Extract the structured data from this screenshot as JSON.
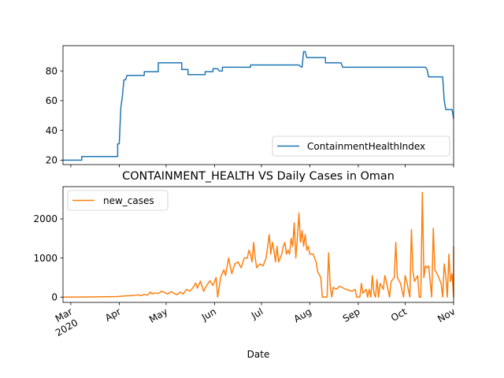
{
  "chart_data": [
    {
      "type": "line",
      "title": "",
      "xlabel": "",
      "ylabel": "",
      "x_range": [
        "2020-02-25",
        "2020-11-01"
      ],
      "ylim": [
        17,
        97
      ],
      "yticks": [
        20,
        40,
        60,
        80
      ],
      "grid": false,
      "legend_position": "lower right",
      "series": [
        {
          "name": "ContainmentHealthIndex",
          "color": "#1f77b4",
          "points": [
            [
              "2020-02-25",
              20
            ],
            [
              "2020-03-08",
              20
            ],
            [
              "2020-03-08",
              22.4
            ],
            [
              "2020-03-31",
              22.4
            ],
            [
              "2020-03-31",
              31
            ],
            [
              "2020-04-01",
              31
            ],
            [
              "2020-04-02",
              55
            ],
            [
              "2020-04-03",
              63
            ],
            [
              "2020-04-04",
              74
            ],
            [
              "2020-04-05",
              74
            ],
            [
              "2020-04-06",
              77
            ],
            [
              "2020-04-17",
              77
            ],
            [
              "2020-04-17",
              79.5
            ],
            [
              "2020-04-26",
              79.5
            ],
            [
              "2020-04-26",
              85.5
            ],
            [
              "2020-05-11",
              85.5
            ],
            [
              "2020-05-11",
              81
            ],
            [
              "2020-05-15",
              81
            ],
            [
              "2020-05-15",
              77.5
            ],
            [
              "2020-05-26",
              77.5
            ],
            [
              "2020-05-26",
              79.5
            ],
            [
              "2020-05-31",
              79.5
            ],
            [
              "2020-05-31",
              81.5
            ],
            [
              "2020-06-03",
              81.5
            ],
            [
              "2020-06-04",
              80
            ],
            [
              "2020-06-06",
              80
            ],
            [
              "2020-06-06",
              82.5
            ],
            [
              "2020-06-24",
              82.5
            ],
            [
              "2020-06-24",
              84
            ],
            [
              "2020-07-25",
              84
            ],
            [
              "2020-07-26",
              83
            ],
            [
              "2020-07-27",
              82.5
            ],
            [
              "2020-07-28",
              93
            ],
            [
              "2020-07-29",
              93
            ],
            [
              "2020-07-30",
              89
            ],
            [
              "2020-08-11",
              89
            ],
            [
              "2020-08-11",
              85.5
            ],
            [
              "2020-08-21",
              85.5
            ],
            [
              "2020-08-22",
              82.5
            ],
            [
              "2020-10-14",
              82.5
            ],
            [
              "2020-10-15",
              81
            ],
            [
              "2020-10-16",
              76
            ],
            [
              "2020-10-25",
              76
            ],
            [
              "2020-10-26",
              60
            ],
            [
              "2020-10-27",
              54
            ],
            [
              "2020-10-31",
              54
            ],
            [
              "2020-11-01",
              48
            ]
          ]
        }
      ]
    },
    {
      "type": "line",
      "title": "CONTAINMENT_HEALTH VS Daily Cases in Oman",
      "xlabel": "Date",
      "ylabel": "",
      "x_range": [
        "2020-02-25",
        "2020-11-01"
      ],
      "ylim": [
        -135,
        2825
      ],
      "yticks": [
        0,
        1000,
        2000
      ],
      "xticks": [
        {
          "date": "2020-03-01",
          "label": "Mar",
          "sublabel": "2020"
        },
        {
          "date": "2020-04-01",
          "label": "Apr"
        },
        {
          "date": "2020-05-01",
          "label": "May"
        },
        {
          "date": "2020-06-01",
          "label": "Jun"
        },
        {
          "date": "2020-07-01",
          "label": "Jul"
        },
        {
          "date": "2020-08-01",
          "label": "Aug"
        },
        {
          "date": "2020-09-01",
          "label": "Sep"
        },
        {
          "date": "2020-10-01",
          "label": "Oct"
        },
        {
          "date": "2020-11-01",
          "label": "Nov"
        }
      ],
      "grid": false,
      "legend_position": "upper left",
      "series": [
        {
          "name": "new_cases",
          "color": "#ff7f0e",
          "points": [
            [
              "2020-02-25",
              0
            ],
            [
              "2020-03-01",
              0
            ],
            [
              "2020-03-10",
              3
            ],
            [
              "2020-03-20",
              8
            ],
            [
              "2020-03-25",
              10
            ],
            [
              "2020-03-31",
              15
            ],
            [
              "2020-04-05",
              30
            ],
            [
              "2020-04-10",
              40
            ],
            [
              "2020-04-13",
              60
            ],
            [
              "2020-04-15",
              35
            ],
            [
              "2020-04-17",
              70
            ],
            [
              "2020-04-19",
              50
            ],
            [
              "2020-04-21",
              130
            ],
            [
              "2020-04-22",
              80
            ],
            [
              "2020-04-24",
              110
            ],
            [
              "2020-04-26",
              90
            ],
            [
              "2020-04-28",
              150
            ],
            [
              "2020-04-30",
              120
            ],
            [
              "2020-05-02",
              80
            ],
            [
              "2020-05-04",
              140
            ],
            [
              "2020-05-06",
              100
            ],
            [
              "2020-05-08",
              60
            ],
            [
              "2020-05-10",
              130
            ],
            [
              "2020-05-12",
              80
            ],
            [
              "2020-05-14",
              200
            ],
            [
              "2020-05-16",
              150
            ],
            [
              "2020-05-18",
              230
            ],
            [
              "2020-05-20",
              360
            ],
            [
              "2020-05-21",
              230
            ],
            [
              "2020-05-23",
              410
            ],
            [
              "2020-05-25",
              150
            ],
            [
              "2020-05-27",
              300
            ],
            [
              "2020-05-29",
              420
            ],
            [
              "2020-05-31",
              300
            ],
            [
              "2020-06-02",
              500
            ],
            [
              "2020-06-03",
              0
            ],
            [
              "2020-06-05",
              520
            ],
            [
              "2020-06-07",
              700
            ],
            [
              "2020-06-08",
              550
            ],
            [
              "2020-06-10",
              1000
            ],
            [
              "2020-06-12",
              600
            ],
            [
              "2020-06-14",
              850
            ],
            [
              "2020-06-16",
              900
            ],
            [
              "2020-06-18",
              750
            ],
            [
              "2020-06-20",
              1000
            ],
            [
              "2020-06-22",
              1000
            ],
            [
              "2020-06-23",
              1200
            ],
            [
              "2020-06-24",
              1100
            ],
            [
              "2020-06-25",
              900
            ],
            [
              "2020-06-26",
              1400
            ],
            [
              "2020-06-27",
              1000
            ],
            [
              "2020-06-28",
              750
            ],
            [
              "2020-06-30",
              850
            ],
            [
              "2020-07-02",
              800
            ],
            [
              "2020-07-04",
              1000
            ],
            [
              "2020-07-06",
              1600
            ],
            [
              "2020-07-07",
              1100
            ],
            [
              "2020-07-08",
              1400
            ],
            [
              "2020-07-09",
              1200
            ],
            [
              "2020-07-10",
              900
            ],
            [
              "2020-07-11",
              1300
            ],
            [
              "2020-07-12",
              900
            ],
            [
              "2020-07-14",
              1100
            ],
            [
              "2020-07-15",
              1300
            ],
            [
              "2020-07-16",
              1400
            ],
            [
              "2020-07-17",
              1100
            ],
            [
              "2020-07-18",
              1200
            ],
            [
              "2020-07-19",
              1100
            ],
            [
              "2020-07-20",
              1500
            ],
            [
              "2020-07-21",
              1300
            ],
            [
              "2020-07-22",
              1900
            ],
            [
              "2020-07-23",
              1000
            ],
            [
              "2020-07-24",
              1500
            ],
            [
              "2020-07-25",
              2150
            ],
            [
              "2020-07-26",
              1400
            ],
            [
              "2020-07-27",
              1700
            ],
            [
              "2020-07-28",
              1300
            ],
            [
              "2020-07-29",
              1600
            ],
            [
              "2020-07-30",
              1200
            ],
            [
              "2020-07-31",
              1300
            ],
            [
              "2020-08-01",
              1100
            ],
            [
              "2020-08-03",
              1100
            ],
            [
              "2020-08-05",
              900
            ],
            [
              "2020-08-06",
              650
            ],
            [
              "2020-08-08",
              500
            ],
            [
              "2020-08-09",
              0
            ],
            [
              "2020-08-12",
              0
            ],
            [
              "2020-08-13",
              1130
            ],
            [
              "2020-08-14",
              300
            ],
            [
              "2020-08-15",
              0
            ],
            [
              "2020-08-16",
              250
            ],
            [
              "2020-08-18",
              200
            ],
            [
              "2020-08-20",
              280
            ],
            [
              "2020-08-24",
              200
            ],
            [
              "2020-08-28",
              150
            ],
            [
              "2020-08-30",
              200
            ],
            [
              "2020-08-31",
              0
            ],
            [
              "2020-09-02",
              0
            ],
            [
              "2020-09-03",
              350
            ],
            [
              "2020-09-04",
              100
            ],
            [
              "2020-09-06",
              200
            ],
            [
              "2020-09-07",
              0
            ],
            [
              "2020-09-08",
              200
            ],
            [
              "2020-09-09",
              0
            ],
            [
              "2020-09-10",
              550
            ],
            [
              "2020-09-11",
              100
            ],
            [
              "2020-09-12",
              0
            ],
            [
              "2020-09-13",
              450
            ],
            [
              "2020-09-14",
              0
            ],
            [
              "2020-09-15",
              350
            ],
            [
              "2020-09-17",
              200
            ],
            [
              "2020-09-18",
              550
            ],
            [
              "2020-09-19",
              400
            ],
            [
              "2020-09-21",
              0
            ],
            [
              "2020-09-22",
              400
            ],
            [
              "2020-09-24",
              500
            ],
            [
              "2020-09-25",
              1400
            ],
            [
              "2020-09-26",
              500
            ],
            [
              "2020-09-28",
              350
            ],
            [
              "2020-09-30",
              0
            ],
            [
              "2020-10-01",
              550
            ],
            [
              "2020-10-02",
              400
            ],
            [
              "2020-10-04",
              0
            ],
            [
              "2020-10-05",
              1730
            ],
            [
              "2020-10-06",
              650
            ],
            [
              "2020-10-07",
              400
            ],
            [
              "2020-10-09",
              550
            ],
            [
              "2020-10-10",
              0
            ],
            [
              "2020-10-11",
              0
            ],
            [
              "2020-10-12",
              2680
            ],
            [
              "2020-10-13",
              500
            ],
            [
              "2020-10-14",
              800
            ],
            [
              "2020-10-15",
              750
            ],
            [
              "2020-10-16",
              800
            ],
            [
              "2020-10-18",
              0
            ],
            [
              "2020-10-19",
              1760
            ],
            [
              "2020-10-20",
              700
            ],
            [
              "2020-10-22",
              550
            ],
            [
              "2020-10-24",
              350
            ],
            [
              "2020-10-25",
              0
            ],
            [
              "2020-10-26",
              850
            ],
            [
              "2020-10-27",
              550
            ],
            [
              "2020-10-28",
              0
            ],
            [
              "2020-10-29",
              1100
            ],
            [
              "2020-10-30",
              400
            ],
            [
              "2020-10-31",
              600
            ],
            [
              "2020-11-01",
              0
            ],
            [
              "2020-11-01",
              1300
            ]
          ]
        }
      ]
    }
  ]
}
